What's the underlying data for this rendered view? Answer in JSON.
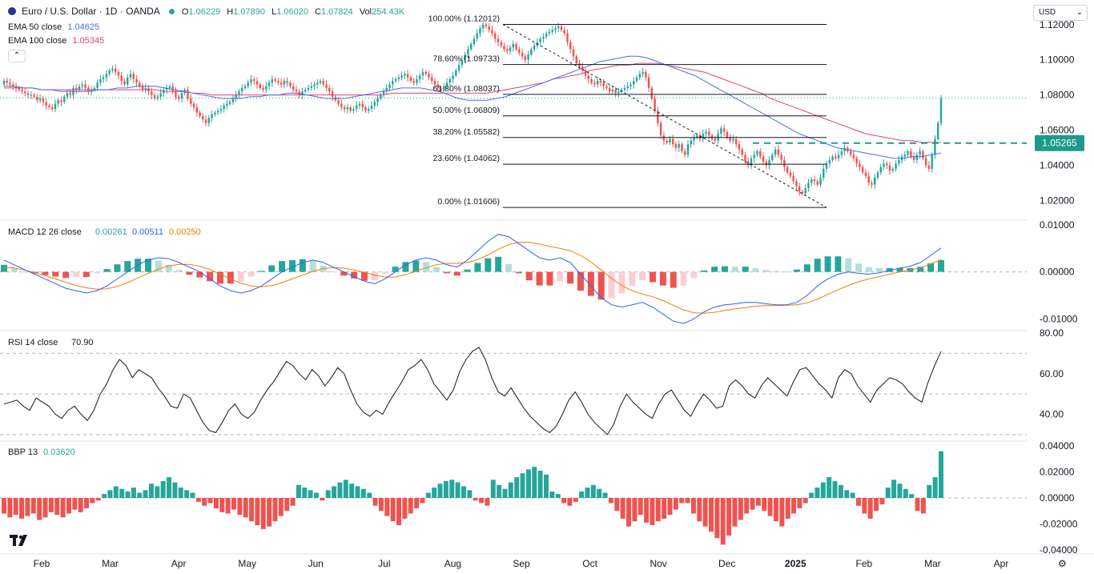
{
  "header": {
    "symbol_title": "Euro / U.S. Dollar · 1D · OANDA",
    "ohlc": {
      "o_label": "O",
      "o_value": "1.06229",
      "h_label": "H",
      "h_value": "1.07890",
      "l_label": "L",
      "l_value": "1.06020",
      "c_label": "C",
      "c_value": "1.07824",
      "vol_label": "Vol",
      "vol_value": "254.43K"
    },
    "ema50": {
      "label": "EMA 50 close",
      "value": "1.04625"
    },
    "ema100": {
      "label": "EMA 100 close",
      "value": "1.05345"
    },
    "collapse_icon": "chevron-up-icon"
  },
  "currency_selector": "USD",
  "price_badge": "1.05265",
  "colors": {
    "up": "#26a69a",
    "down": "#ef5350",
    "ema50": "#4a6fe3",
    "ema100": "#e0407a",
    "macd": "#2962ff",
    "signal": "#f57c00",
    "rsi": "#131722",
    "badge": "#1e9a8a",
    "fib": "#131722",
    "grid_dash": "#b2b5be"
  },
  "chart_data": [
    {
      "type": "candlestick",
      "title": "Euro / U.S. Dollar · 1D · OANDA",
      "yaxis_ticks": [
        "1.12000",
        "1.10000",
        "1.08000",
        "1.06000",
        "1.04000",
        "1.02000"
      ],
      "ylim": [
        1.012,
        1.124
      ],
      "x_ticks": [
        "Feb",
        "Mar",
        "Apr",
        "May",
        "Jun",
        "Jul",
        "Aug",
        "Sep",
        "Oct",
        "Nov",
        "Dec",
        "2025",
        "Feb",
        "Mar",
        "Apr"
      ],
      "close_path": [
        1.088,
        1.087,
        1.086,
        1.085,
        1.084,
        1.083,
        1.082,
        1.081,
        1.08,
        1.08,
        1.079,
        1.077,
        1.078,
        1.076,
        1.074,
        1.073,
        1.072,
        1.075,
        1.077,
        1.076,
        1.079,
        1.081,
        1.08,
        1.084,
        1.083,
        1.085,
        1.086,
        1.084,
        1.082,
        1.083,
        1.084,
        1.087,
        1.089,
        1.09,
        1.092,
        1.094,
        1.095,
        1.093,
        1.091,
        1.088,
        1.086,
        1.09,
        1.092,
        1.089,
        1.087,
        1.085,
        1.083,
        1.084,
        1.082,
        1.08,
        1.078,
        1.079,
        1.081,
        1.083,
        1.084,
        1.085,
        1.082,
        1.079,
        1.078,
        1.081,
        1.083,
        1.078,
        1.075,
        1.073,
        1.07,
        1.068,
        1.066,
        1.064,
        1.067,
        1.069,
        1.07,
        1.071,
        1.072,
        1.074,
        1.075,
        1.076,
        1.078,
        1.08,
        1.082,
        1.084,
        1.085,
        1.087,
        1.089,
        1.088,
        1.086,
        1.084,
        1.083,
        1.085,
        1.087,
        1.089,
        1.088,
        1.087,
        1.086,
        1.088,
        1.087,
        1.085,
        1.083,
        1.082,
        1.08,
        1.082,
        1.083,
        1.084,
        1.085,
        1.086,
        1.087,
        1.088,
        1.086,
        1.084,
        1.082,
        1.079,
        1.077,
        1.075,
        1.073,
        1.072,
        1.073,
        1.071,
        1.072,
        1.074,
        1.075,
        1.073,
        1.071,
        1.072,
        1.074,
        1.076,
        1.078,
        1.08,
        1.082,
        1.084,
        1.086,
        1.088,
        1.089,
        1.09,
        1.091,
        1.092,
        1.09,
        1.088,
        1.087,
        1.089,
        1.091,
        1.093,
        1.092,
        1.09,
        1.088,
        1.086,
        1.084,
        1.083,
        1.085,
        1.087,
        1.089,
        1.091,
        1.094,
        1.097,
        1.1,
        1.103,
        1.106,
        1.109,
        1.112,
        1.115,
        1.118,
        1.12,
        1.119,
        1.117,
        1.115,
        1.112,
        1.11,
        1.108,
        1.106,
        1.105,
        1.107,
        1.109,
        1.106,
        1.104,
        1.102,
        1.1,
        1.103,
        1.106,
        1.108,
        1.11,
        1.112,
        1.113,
        1.115,
        1.116,
        1.117,
        1.118,
        1.119,
        1.117,
        1.115,
        1.11,
        1.106,
        1.102,
        1.098,
        1.096,
        1.094,
        1.091,
        1.089,
        1.087,
        1.086,
        1.088,
        1.087,
        1.085,
        1.084,
        1.082,
        1.083,
        1.081,
        1.082,
        1.083,
        1.084,
        1.085,
        1.086,
        1.088,
        1.09,
        1.092,
        1.093,
        1.09,
        1.084,
        1.078,
        1.071,
        1.064,
        1.057,
        1.054,
        1.053,
        1.055,
        1.052,
        1.05,
        1.052,
        1.048,
        1.046,
        1.052,
        1.054,
        1.056,
        1.057,
        1.055,
        1.058,
        1.059,
        1.057,
        1.055,
        1.054,
        1.058,
        1.061,
        1.059,
        1.056,
        1.054,
        1.055,
        1.052,
        1.049,
        1.046,
        1.042,
        1.04,
        1.044,
        1.046,
        1.048,
        1.045,
        1.042,
        1.04,
        1.043,
        1.046,
        1.049,
        1.046,
        1.043,
        1.039,
        1.036,
        1.034,
        1.031,
        1.028,
        1.025,
        1.024,
        1.027,
        1.03,
        1.032,
        1.031,
        1.029,
        1.033,
        1.038,
        1.041,
        1.043,
        1.045,
        1.044,
        1.046,
        1.048,
        1.05,
        1.048,
        1.046,
        1.044,
        1.041,
        1.039,
        1.036,
        1.034,
        1.03,
        1.029,
        1.033,
        1.036,
        1.039,
        1.041,
        1.04,
        1.037,
        1.038,
        1.041,
        1.043,
        1.045,
        1.046,
        1.048,
        1.045,
        1.043,
        1.046,
        1.048,
        1.044,
        1.04,
        1.038,
        1.046,
        1.055,
        1.064,
        1.078
      ],
      "ema50_path": [
        1.085,
        1.085,
        1.084,
        1.084,
        1.083,
        1.083,
        1.082,
        1.082,
        1.082,
        1.082,
        1.083,
        1.083,
        1.084,
        1.084,
        1.085,
        1.085,
        1.085,
        1.084,
        1.083,
        1.082,
        1.081,
        1.08,
        1.079,
        1.078,
        1.078,
        1.078,
        1.079,
        1.079,
        1.08,
        1.08,
        1.081,
        1.081,
        1.08,
        1.079,
        1.078,
        1.078,
        1.078,
        1.079,
        1.08,
        1.081,
        1.082,
        1.083,
        1.084,
        1.084,
        1.084,
        1.083,
        1.082,
        1.08,
        1.078,
        1.077,
        1.077,
        1.077,
        1.078,
        1.079,
        1.081,
        1.083,
        1.085,
        1.087,
        1.089,
        1.091,
        1.093,
        1.095,
        1.097,
        1.099,
        1.1,
        1.101,
        1.102,
        1.102,
        1.101,
        1.099,
        1.097,
        1.095,
        1.093,
        1.091,
        1.088,
        1.085,
        1.082,
        1.079,
        1.076,
        1.073,
        1.07,
        1.067,
        1.064,
        1.061,
        1.058,
        1.056,
        1.054,
        1.052,
        1.05,
        1.049,
        1.048,
        1.047,
        1.046,
        1.045,
        1.044,
        1.044,
        1.045,
        1.045,
        1.046,
        1.047
      ],
      "ema100_path": [
        1.084,
        1.084,
        1.084,
        1.084,
        1.083,
        1.083,
        1.083,
        1.083,
        1.083,
        1.083,
        1.083,
        1.083,
        1.083,
        1.083,
        1.083,
        1.083,
        1.083,
        1.082,
        1.082,
        1.082,
        1.081,
        1.081,
        1.08,
        1.08,
        1.08,
        1.08,
        1.08,
        1.08,
        1.08,
        1.08,
        1.08,
        1.08,
        1.08,
        1.08,
        1.08,
        1.08,
        1.08,
        1.08,
        1.08,
        1.08,
        1.08,
        1.081,
        1.081,
        1.081,
        1.081,
        1.081,
        1.081,
        1.081,
        1.081,
        1.081,
        1.081,
        1.081,
        1.082,
        1.083,
        1.084,
        1.085,
        1.086,
        1.087,
        1.089,
        1.09,
        1.091,
        1.092,
        1.094,
        1.095,
        1.096,
        1.097,
        1.097,
        1.098,
        1.098,
        1.098,
        1.097,
        1.096,
        1.095,
        1.094,
        1.093,
        1.091,
        1.089,
        1.087,
        1.085,
        1.083,
        1.081,
        1.078,
        1.076,
        1.074,
        1.072,
        1.07,
        1.068,
        1.066,
        1.064,
        1.062,
        1.06,
        1.058,
        1.057,
        1.056,
        1.055,
        1.054,
        1.054,
        1.053,
        1.053,
        1.053
      ],
      "fibonacci": [
        {
          "label": "100.00% (1.12012)",
          "value": 1.12012
        },
        {
          "label": "78.60% (1.09733)",
          "value": 1.09733
        },
        {
          "label": "61.80% (1.08037)",
          "value": 1.08037
        },
        {
          "label": "50.00% (1.06809)",
          "value": 1.06809
        },
        {
          "label": "38.20% (1.05582)",
          "value": 1.05582
        },
        {
          "label": "23.60% (1.04062)",
          "value": 1.04062
        },
        {
          "label": "0.00% (1.01606)",
          "value": 1.01606
        }
      ],
      "horizontal_line": 1.05265,
      "current_price_line": 1.07824
    },
    {
      "type": "macd",
      "label": "MACD 12 26 close",
      "values": [
        "0.00261",
        "0.00511",
        "0.00250"
      ],
      "yaxis_ticks": [
        "0.01000",
        "0.00000",
        "-0.01000"
      ],
      "ylim": [
        -0.012,
        0.0105
      ],
      "macd_path": [
        0.0025,
        0.0015,
        0.0005,
        -0.0005,
        -0.0015,
        -0.0025,
        -0.0035,
        -0.004,
        -0.0045,
        -0.004,
        -0.003,
        -0.0015,
        0.0,
        0.0015,
        0.0025,
        0.003,
        0.0028,
        0.002,
        0.001,
        0.0,
        -0.0015,
        -0.003,
        -0.004,
        -0.0045,
        -0.004,
        -0.003,
        -0.0015,
        0.0,
        0.001,
        0.002,
        0.0025,
        0.002,
        0.001,
        0.0,
        -0.001,
        -0.002,
        -0.0025,
        -0.0015,
        0.0,
        0.0015,
        0.0025,
        0.003,
        0.0025,
        0.0015,
        0.001,
        0.0025,
        0.0045,
        0.0065,
        0.008,
        0.0075,
        0.006,
        0.0045,
        0.003,
        0.0025,
        0.003,
        0.002,
        -0.0005,
        -0.003,
        -0.0055,
        -0.007,
        -0.0075,
        -0.007,
        -0.0065,
        -0.0075,
        -0.009,
        -0.0105,
        -0.011,
        -0.01,
        -0.0085,
        -0.0075,
        -0.007,
        -0.0068,
        -0.0065,
        -0.0065,
        -0.0068,
        -0.007,
        -0.007,
        -0.0065,
        -0.005,
        -0.003,
        -0.0015,
        -0.0005,
        0.0,
        -0.0003,
        -0.0005,
        -0.0002,
        0.0003,
        0.0008,
        0.0012,
        0.002,
        0.0035,
        0.0051
      ],
      "signal_path": [
        0.001,
        0.0008,
        0.0004,
        -0.0002,
        -0.0008,
        -0.0015,
        -0.0022,
        -0.0029,
        -0.0034,
        -0.0037,
        -0.0036,
        -0.0031,
        -0.0023,
        -0.0013,
        -0.0003,
        0.0006,
        0.0013,
        0.0016,
        0.0016,
        0.0012,
        0.0005,
        -0.0005,
        -0.0015,
        -0.0024,
        -0.003,
        -0.0032,
        -0.0029,
        -0.0023,
        -0.0015,
        -0.0007,
        0.0001,
        0.0007,
        0.0009,
        0.0008,
        0.0004,
        -0.0001,
        -0.0007,
        -0.0011,
        -0.0011,
        -0.0006,
        0.0001,
        0.0009,
        0.0015,
        0.0018,
        0.0018,
        0.002,
        0.0026,
        0.0036,
        0.0048,
        0.0058,
        0.0063,
        0.0063,
        0.0059,
        0.0054,
        0.005,
        0.0045,
        0.0035,
        0.0021,
        0.0004,
        -0.0014,
        -0.0029,
        -0.004,
        -0.0047,
        -0.0053,
        -0.0061,
        -0.0071,
        -0.0081,
        -0.0087,
        -0.0088,
        -0.0086,
        -0.0082,
        -0.0079,
        -0.0076,
        -0.0073,
        -0.0072,
        -0.0072,
        -0.0071,
        -0.007,
        -0.0066,
        -0.0058,
        -0.0048,
        -0.0038,
        -0.0029,
        -0.0021,
        -0.0015,
        -0.001,
        -0.0005,
        0.0,
        0.0004,
        0.0009,
        0.0017,
        0.0026
      ],
      "hist": [
        0.0015,
        0.0007,
        0.0001,
        -0.0003,
        -0.0007,
        -0.001,
        -0.0013,
        -0.0011,
        -0.0011,
        -0.0003,
        0.0006,
        0.0016,
        0.0023,
        0.0028,
        0.0028,
        0.0024,
        0.0015,
        0.0004,
        -0.0006,
        -0.0012,
        -0.002,
        -0.0025,
        -0.0025,
        -0.0021,
        -0.001,
        0.0002,
        0.0014,
        0.0023,
        0.0025,
        0.0027,
        0.0024,
        0.0013,
        0.0001,
        -0.0008,
        -0.0014,
        -0.0019,
        -0.0018,
        -0.0004,
        0.0011,
        0.0021,
        0.0024,
        0.0021,
        0.001,
        -0.0003,
        -0.0008,
        0.0005,
        0.0019,
        0.0029,
        0.0032,
        0.0017,
        -0.0003,
        -0.0018,
        -0.0029,
        -0.0029,
        -0.002,
        -0.0025,
        -0.004,
        -0.0051,
        -0.0059,
        -0.0056,
        -0.0046,
        -0.003,
        -0.0018,
        -0.0022,
        -0.0029,
        -0.0034,
        -0.0029,
        -0.0013,
        0.0003,
        0.0011,
        0.0012,
        0.0011,
        0.0011,
        0.0008,
        0.0004,
        0.0002,
        0.0001,
        0.0005,
        0.0016,
        0.0028,
        0.0033,
        0.0033,
        0.0029,
        0.0018,
        0.001,
        0.0008,
        0.0008,
        0.0008,
        0.0008,
        0.0011,
        0.0018,
        0.0025
      ]
    },
    {
      "type": "line",
      "label": "RSI 14 close",
      "value": "70.90",
      "yaxis_ticks": [
        "80.00",
        "60.00",
        "40.00"
      ],
      "ylim": [
        28,
        80
      ],
      "bands": [
        70,
        50,
        30
      ],
      "values": [
        45,
        46,
        47,
        44,
        42,
        48,
        46,
        44,
        40,
        38,
        42,
        44,
        40,
        37,
        42,
        50,
        55,
        62,
        67,
        64,
        58,
        62,
        60,
        58,
        53,
        49,
        44,
        43,
        50,
        48,
        42,
        36,
        32,
        31,
        36,
        42,
        45,
        40,
        38,
        41,
        47,
        52,
        56,
        61,
        66,
        64,
        60,
        57,
        62,
        59,
        54,
        58,
        63,
        60,
        52,
        45,
        41,
        39,
        42,
        40,
        46,
        51,
        56,
        62,
        64,
        67,
        62,
        55,
        51,
        47,
        52,
        61,
        67,
        71,
        73,
        67,
        58,
        51,
        49,
        53,
        48,
        43,
        39,
        36,
        33,
        31,
        34,
        40,
        47,
        51,
        46,
        40,
        36,
        33,
        30,
        35,
        44,
        50,
        46,
        43,
        40,
        38,
        45,
        50,
        52,
        47,
        42,
        39,
        45,
        50,
        47,
        43,
        44,
        54,
        57,
        54,
        50,
        48,
        54,
        58,
        55,
        52,
        49,
        56,
        62,
        63,
        59,
        55,
        52,
        48,
        58,
        62,
        60,
        54,
        50,
        46,
        52,
        55,
        58,
        57,
        55,
        51,
        48,
        46,
        56,
        64,
        70.9
      ]
    },
    {
      "type": "bar",
      "label": "BBP 13",
      "value": "0.03620",
      "yaxis_ticks": [
        "0.04000",
        "0.02000",
        "0.00000",
        "-0.02000",
        "-0.04000"
      ],
      "ylim": [
        -0.042,
        0.042
      ],
      "values": [
        -0.012,
        -0.015,
        -0.013,
        -0.016,
        -0.014,
        -0.012,
        -0.017,
        -0.015,
        -0.011,
        -0.013,
        -0.015,
        -0.012,
        -0.009,
        -0.011,
        -0.008,
        -0.004,
        -0.002,
        0.003,
        0.006,
        0.009,
        0.007,
        0.005,
        0.008,
        0.004,
        0.006,
        0.011,
        0.009,
        0.013,
        0.016,
        0.012,
        0.008,
        0.006,
        0.004,
        -0.003,
        -0.006,
        -0.004,
        -0.008,
        -0.011,
        -0.012,
        -0.009,
        -0.013,
        -0.015,
        -0.018,
        -0.021,
        -0.024,
        -0.022,
        -0.018,
        -0.014,
        -0.01,
        -0.006,
        0.01,
        0.008,
        0.006,
        0.004,
        -0.002,
        0.006,
        0.009,
        0.012,
        0.014,
        0.011,
        0.009,
        0.007,
        0.004,
        -0.006,
        -0.01,
        -0.014,
        -0.018,
        -0.021,
        -0.016,
        -0.012,
        -0.008,
        -0.004,
        0.004,
        0.008,
        0.011,
        0.013,
        0.014,
        0.012,
        0.009,
        0.006,
        -0.002,
        -0.004,
        -0.006,
        0.014,
        0.01,
        0.007,
        0.012,
        0.016,
        0.019,
        0.022,
        0.024,
        0.021,
        0.018,
        0.005,
        0.003,
        -0.004,
        -0.006,
        -0.003,
        0.005,
        0.008,
        0.01,
        0.007,
        0.004,
        -0.004,
        -0.01,
        -0.016,
        -0.022,
        -0.018,
        -0.013,
        -0.019,
        -0.021,
        -0.018,
        -0.016,
        -0.013,
        -0.009,
        -0.004,
        -0.004,
        -0.012,
        -0.018,
        -0.022,
        -0.026,
        -0.031,
        -0.036,
        -0.029,
        -0.022,
        -0.017,
        -0.012,
        -0.009,
        -0.006,
        -0.01,
        -0.014,
        -0.018,
        -0.022,
        -0.016,
        -0.012,
        -0.008,
        -0.004,
        0.004,
        0.008,
        0.012,
        0.016,
        0.013,
        0.01,
        0.006,
        0.004,
        -0.006,
        -0.012,
        -0.016,
        -0.01,
        -0.005,
        0.008,
        0.014,
        0.011,
        0.007,
        0.003,
        -0.01,
        -0.012,
        0.01,
        0.016,
        0.036
      ]
    }
  ]
}
